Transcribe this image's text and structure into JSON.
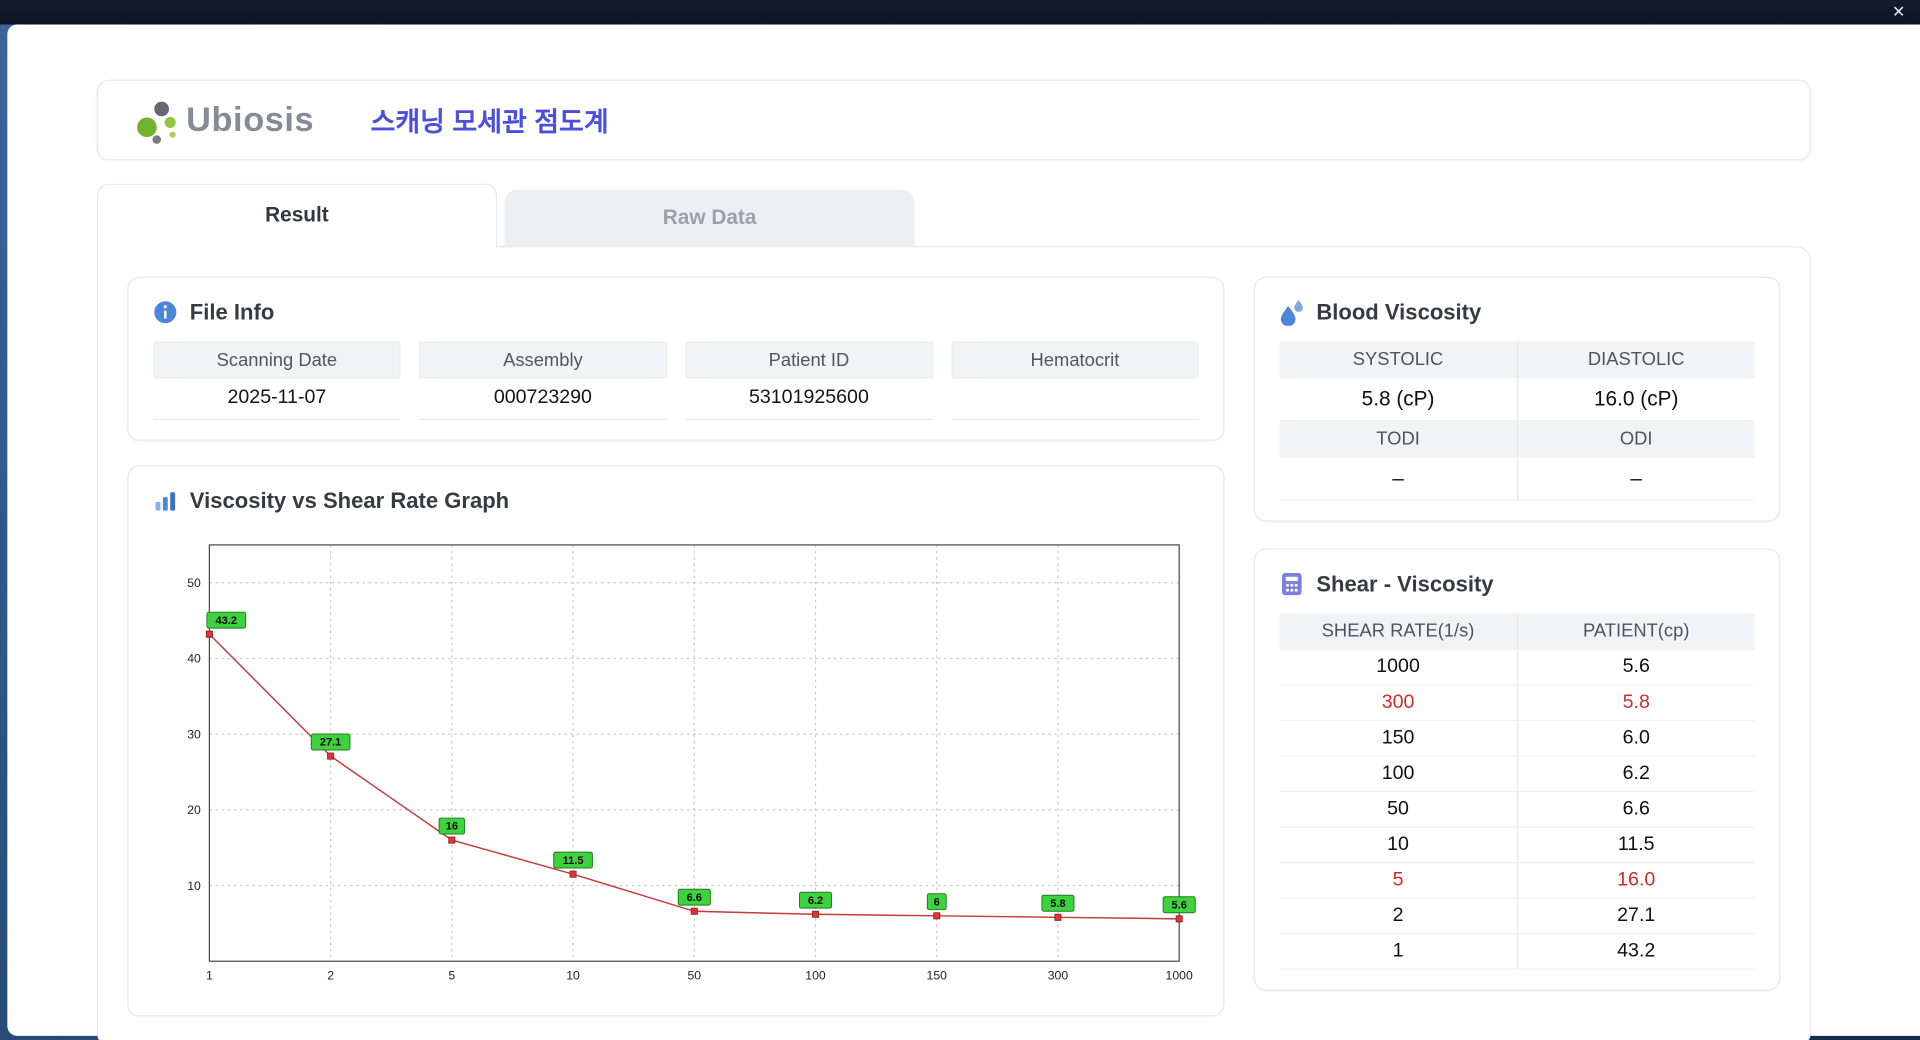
{
  "window": {
    "close_label": "✕"
  },
  "header": {
    "logo_text": "Ubiosis",
    "app_title": "스캐닝 모세관 점도계"
  },
  "tabs": {
    "result": "Result",
    "raw_data": "Raw Data"
  },
  "file_info": {
    "title": "File Info",
    "fields": [
      {
        "label": "Scanning Date",
        "value": "2025-11-07"
      },
      {
        "label": "Assembly",
        "value": "000723290"
      },
      {
        "label": "Patient ID",
        "value": "53101925600"
      },
      {
        "label": "Hematocrit",
        "value": ""
      }
    ]
  },
  "blood_viscosity": {
    "title": "Blood Viscosity",
    "rows": [
      {
        "type": "header",
        "cells": [
          "SYSTOLIC",
          "DIASTOLIC"
        ]
      },
      {
        "type": "value",
        "cells": [
          "5.8 (cP)",
          "16.0 (cP)"
        ]
      },
      {
        "type": "header",
        "cells": [
          "TODI",
          "ODI"
        ]
      },
      {
        "type": "value",
        "cells": [
          "–",
          "–"
        ]
      }
    ]
  },
  "graph": {
    "title": "Viscosity vs Shear Rate Graph"
  },
  "chart_data": {
    "type": "line",
    "title": "Viscosity vs Shear Rate Graph",
    "xlabel": "",
    "ylabel": "",
    "x_categories": [
      "1",
      "2",
      "5",
      "10",
      "50",
      "100",
      "150",
      "300",
      "1000"
    ],
    "values": [
      43.2,
      27.1,
      16,
      11.5,
      6.6,
      6.2,
      6,
      5.8,
      5.6
    ],
    "point_labels": [
      "43.2",
      "27.1",
      "16",
      "11.5",
      "6.6",
      "6.2",
      "6",
      "5.8",
      "5.6"
    ],
    "yticks": [
      10,
      20,
      30,
      40,
      50
    ],
    "ylim": [
      0,
      55
    ],
    "grid": true,
    "line_color": "#c93a3a",
    "marker_color": "#e23535",
    "label_bg": "#3fd23f"
  },
  "shear_viscosity": {
    "title": "Shear - Viscosity",
    "headers": [
      "SHEAR RATE(1/s)",
      "PATIENT(cp)"
    ],
    "rows": [
      {
        "shear_rate": "1000",
        "patient": "5.6",
        "highlight": false
      },
      {
        "shear_rate": "300",
        "patient": "5.8",
        "highlight": true
      },
      {
        "shear_rate": "150",
        "patient": "6.0",
        "highlight": false
      },
      {
        "shear_rate": "100",
        "patient": "6.2",
        "highlight": false
      },
      {
        "shear_rate": "50",
        "patient": "6.6",
        "highlight": false
      },
      {
        "shear_rate": "10",
        "patient": "11.5",
        "highlight": false
      },
      {
        "shear_rate": "5",
        "patient": "16.0",
        "highlight": true
      },
      {
        "shear_rate": "2",
        "patient": "27.1",
        "highlight": false
      },
      {
        "shear_rate": "1",
        "patient": "43.2",
        "highlight": false
      }
    ]
  },
  "colors": {
    "accent_blue": "#4a4fe0",
    "icon_blue": "#4d86d8",
    "highlight_red": "#cf2d2d",
    "header_bg": "#f2f3f7"
  }
}
